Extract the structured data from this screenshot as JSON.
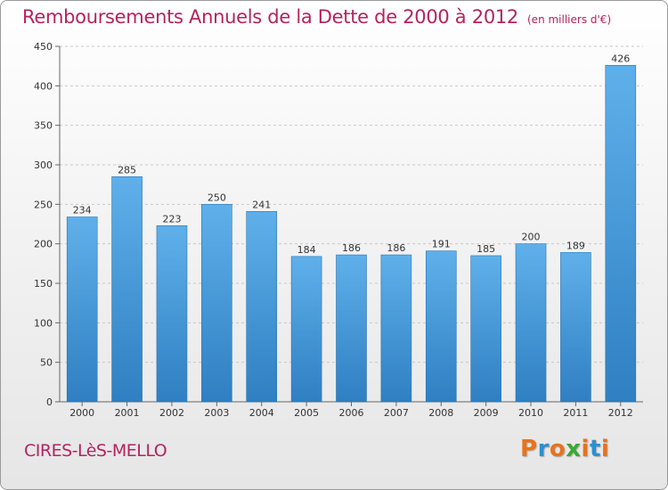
{
  "header": {
    "title": "Remboursements Annuels de la Dette de 2000 à 2012",
    "subtitle": "(en milliers d'€)"
  },
  "footer": {
    "commune": "CIRES-LèS-MELLO",
    "logo": "Proxiti"
  },
  "colors": {
    "title": "#b4235f",
    "bar_top": "#5fb0ea",
    "bar_bottom": "#2f7fc2",
    "logo_letters": [
      "#e8731c",
      "#2e8fd0",
      "#e8731c",
      "#3aa935",
      "#e8731c",
      "#2e8fd0",
      "#e8731c"
    ]
  },
  "chart_data": {
    "type": "bar",
    "title": "Remboursements Annuels de la Dette de 2000 à 2012",
    "subtitle": "(en milliers d'€)",
    "categories": [
      "2000",
      "2001",
      "2002",
      "2003",
      "2004",
      "2005",
      "2006",
      "2007",
      "2008",
      "2009",
      "2010",
      "2011",
      "2012"
    ],
    "values": [
      234,
      285,
      223,
      250,
      241,
      184,
      186,
      186,
      191,
      185,
      200,
      189,
      426
    ],
    "ylim": [
      0,
      450
    ],
    "yticks": [
      0,
      50,
      100,
      150,
      200,
      250,
      300,
      350,
      400,
      450
    ],
    "grid": true,
    "data_labels": true
  }
}
